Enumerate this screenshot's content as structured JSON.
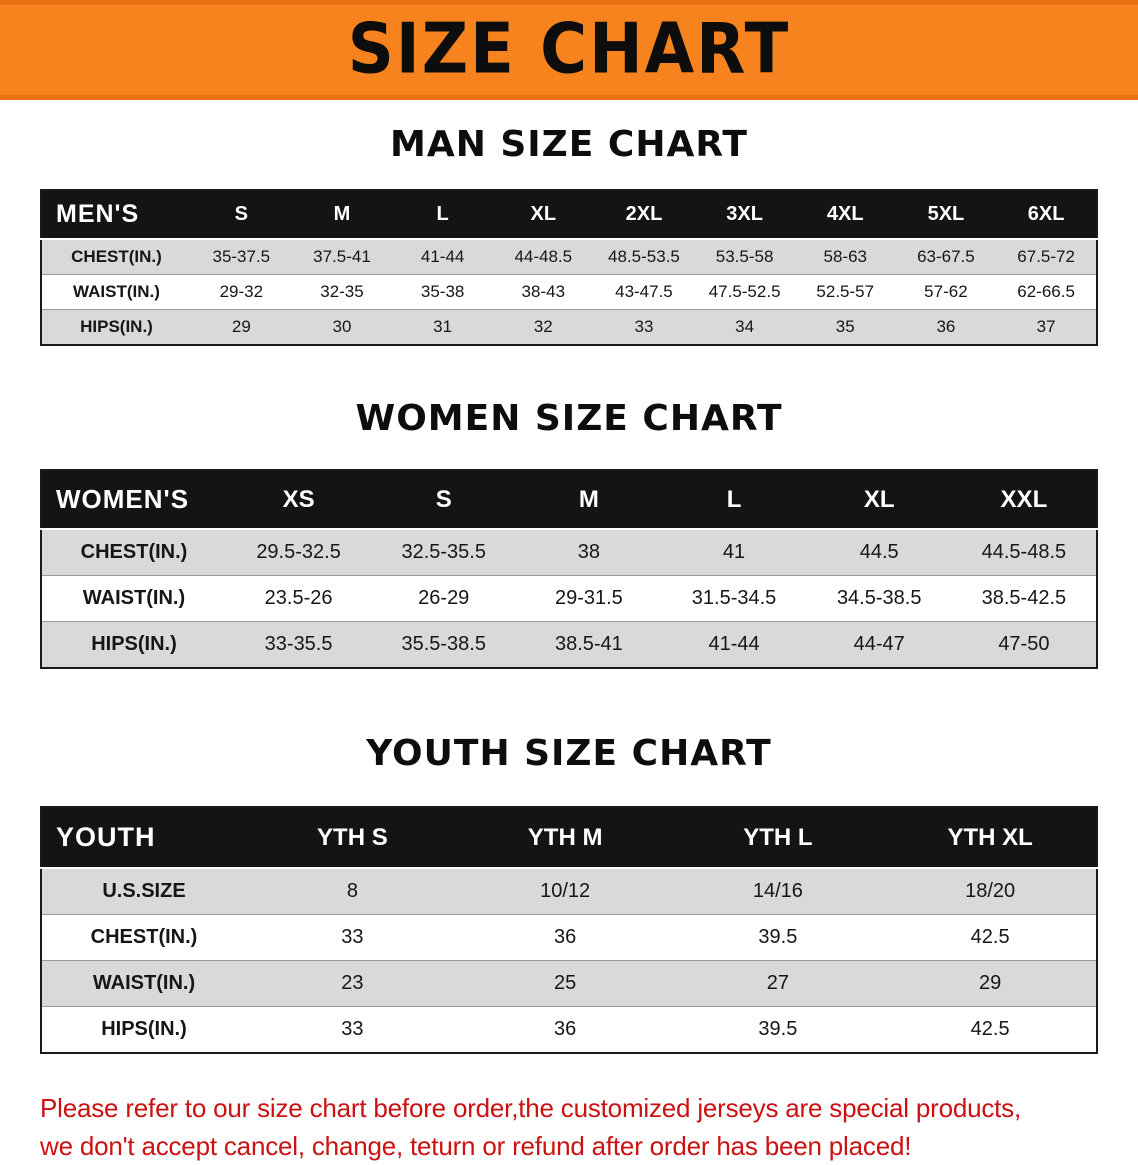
{
  "colors": {
    "banner_bg": "#f6831d",
    "banner_edge": "#e8700f",
    "table_header_bg": "#141414",
    "row_alt_bg": "#d9d9d9",
    "row_bg": "#ffffff",
    "disclaimer_color": "#cb1111"
  },
  "banner": {
    "title": "SIZE CHART"
  },
  "sections": [
    {
      "id": "men",
      "heading": "MAN SIZE CHART",
      "table": {
        "label": "MEN'S",
        "columns": [
          "S",
          "M",
          "L",
          "XL",
          "2XL",
          "3XL",
          "4XL",
          "5XL",
          "6XL"
        ],
        "rows": [
          {
            "label": "CHEST(IN.)",
            "values": [
              "35-37.5",
              "37.5-41",
              "41-44",
              "44-48.5",
              "48.5-53.5",
              "53.5-58",
              "58-63",
              "63-67.5",
              "67.5-72"
            ]
          },
          {
            "label": "WAIST(IN.)",
            "values": [
              "29-32",
              "32-35",
              "35-38",
              "38-43",
              "43-47.5",
              "47.5-52.5",
              "52.5-57",
              "57-62",
              "62-66.5"
            ]
          },
          {
            "label": "HIPS(IN.)",
            "values": [
              "29",
              "30",
              "31",
              "32",
              "33",
              "34",
              "35",
              "36",
              "37"
            ]
          }
        ]
      }
    },
    {
      "id": "women",
      "heading": "WOMEN SIZE CHART",
      "table": {
        "label": "WOMEN'S",
        "columns": [
          "XS",
          "S",
          "M",
          "L",
          "XL",
          "XXL"
        ],
        "rows": [
          {
            "label": "CHEST(IN.)",
            "values": [
              "29.5-32.5",
              "32.5-35.5",
              "38",
              "41",
              "44.5",
              "44.5-48.5"
            ]
          },
          {
            "label": "WAIST(IN.)",
            "values": [
              "23.5-26",
              "26-29",
              "29-31.5",
              "31.5-34.5",
              "34.5-38.5",
              "38.5-42.5"
            ]
          },
          {
            "label": "HIPS(IN.)",
            "values": [
              "33-35.5",
              "35.5-38.5",
              "38.5-41",
              "41-44",
              "44-47",
              "47-50"
            ]
          }
        ]
      }
    },
    {
      "id": "youth",
      "heading": "YOUTH SIZE CHART",
      "table": {
        "label": "YOUTH",
        "columns": [
          "YTH S",
          "YTH M",
          "YTH L",
          "YTH XL"
        ],
        "rows": [
          {
            "label": "U.S.SIZE",
            "values": [
              "8",
              "10/12",
              "14/16",
              "18/20"
            ]
          },
          {
            "label": "CHEST(IN.)",
            "values": [
              "33",
              "36",
              "39.5",
              "42.5"
            ]
          },
          {
            "label": "WAIST(IN.)",
            "values": [
              "23",
              "25",
              "27",
              "29"
            ]
          },
          {
            "label": "HIPS(IN.)",
            "values": [
              "33",
              "36",
              "39.5",
              "42.5"
            ]
          }
        ]
      }
    }
  ],
  "disclaimer": {
    "line1": "Please refer to our size chart before order,the customized jerseys are special products,",
    "line2": "we don't accept cancel, change, teturn or refund after order has been placed!"
  }
}
